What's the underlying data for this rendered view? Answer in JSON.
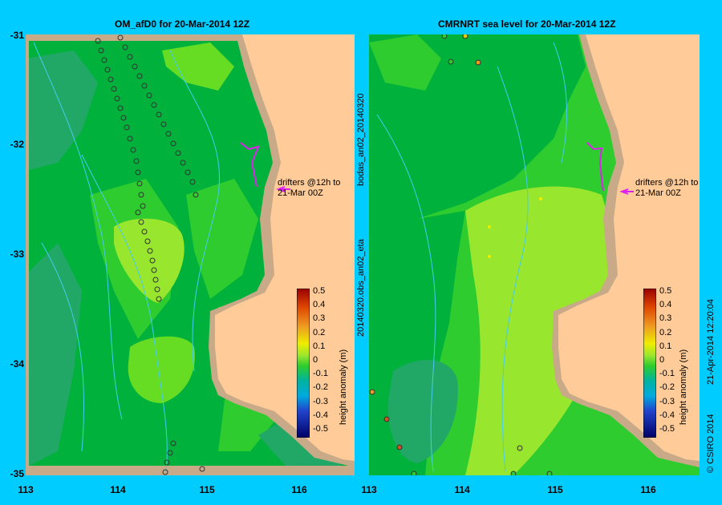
{
  "left_panel": {
    "title": "OM_afD0  for 20-Mar-2014 12Z",
    "annotation_line1": "drifters @12h to",
    "annotation_line2": "21-Mar 00Z"
  },
  "right_panel": {
    "title": "CMRNRT sea level  for 20-Mar-2014 12Z",
    "annotation_line1": "drifters @12h to",
    "annotation_line2": "21-Mar 00Z",
    "side_label_top": "bodas_an02_20140320",
    "side_label_bottom": "20140320.obs_an02_eta"
  },
  "y_ticks": [
    "-31",
    "-32",
    "-33",
    "-34",
    "-35"
  ],
  "x_ticks_left": [
    "113",
    "114",
    "115",
    "116"
  ],
  "x_ticks_right": [
    "113",
    "114",
    "115",
    "116"
  ],
  "colorbar": {
    "label": "height anomaly (m)",
    "ticks": [
      "0.5",
      "0.4",
      "0.3",
      "0.2",
      "0.1",
      "0",
      "-0.1",
      "-0.2",
      "-0.3",
      "-0.4",
      "-0.5"
    ]
  },
  "footer": {
    "copyright": "© CSIRO 2014",
    "timestamp": "21-Apr-2014 12:20:04"
  },
  "colors": {
    "land": "#ffcc99",
    "shelf": "#c8aa88",
    "sea_dark": "#00b23c",
    "sea_mid": "#2ecc2e",
    "sea_light": "#66dd22",
    "sea_lighter": "#99e62e",
    "sea_teal": "#22a866",
    "background": "#00ccff"
  }
}
